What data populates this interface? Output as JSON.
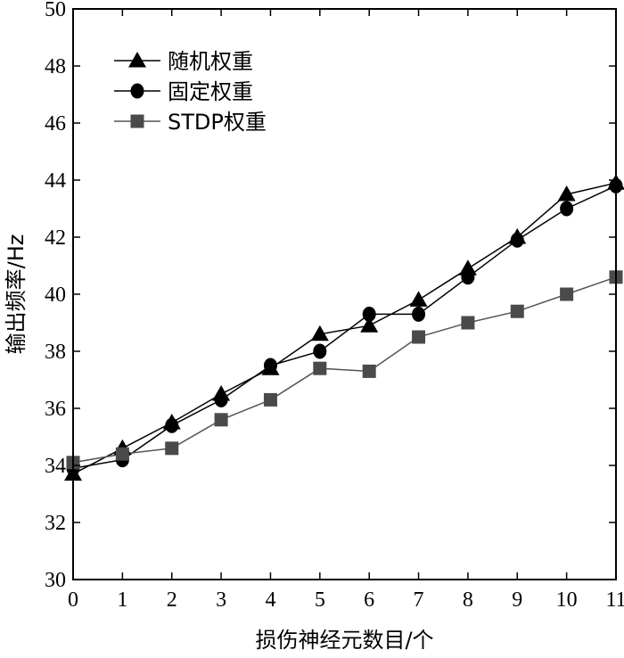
{
  "chart_data": {
    "type": "line",
    "xlabel": "损伤神经元数目/个",
    "ylabel": "输出频率/Hz",
    "x": [
      0,
      1,
      2,
      3,
      4,
      5,
      6,
      7,
      8,
      9,
      10,
      11
    ],
    "xlim": [
      0,
      11
    ],
    "ylim": [
      30,
      50
    ],
    "xticks": [
      "0",
      "1",
      "2",
      "3",
      "4",
      "5",
      "6",
      "7",
      "8",
      "9",
      "10",
      "11"
    ],
    "yticks": [
      "30",
      "32",
      "34",
      "36",
      "38",
      "40",
      "42",
      "44",
      "46",
      "48",
      "50"
    ],
    "grid": false,
    "legend_position": "top-left",
    "series": [
      {
        "name": "随机权重",
        "marker": "triangle",
        "color": "#000000",
        "values": [
          33.7,
          34.6,
          35.5,
          36.5,
          37.4,
          38.6,
          38.9,
          39.8,
          40.9,
          42.0,
          43.5,
          43.9
        ]
      },
      {
        "name": "固定权重",
        "marker": "circle",
        "color": "#000000",
        "values": [
          33.9,
          34.2,
          35.4,
          36.3,
          37.5,
          38.0,
          39.3,
          39.3,
          40.6,
          41.9,
          43.0,
          43.8
        ]
      },
      {
        "name": "STDP权重",
        "marker": "square",
        "color": "#4a4a4a",
        "values": [
          34.1,
          34.4,
          34.6,
          35.6,
          36.3,
          37.4,
          37.3,
          38.5,
          39.0,
          39.4,
          40.0,
          40.6
        ]
      }
    ]
  }
}
